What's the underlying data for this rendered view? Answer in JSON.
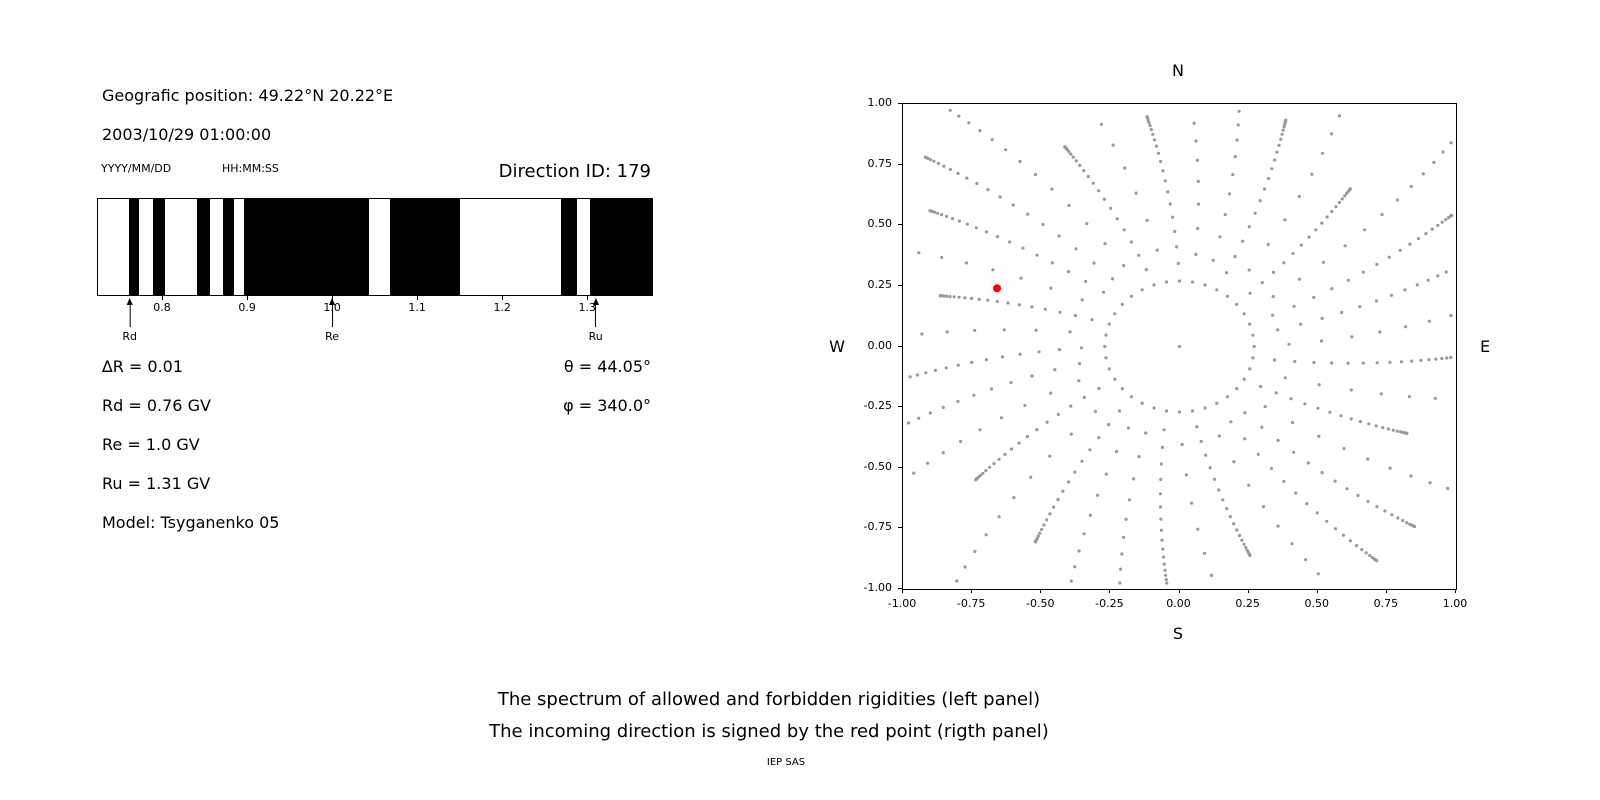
{
  "left_panel": {
    "geo_position": "Geografic position: 49.22°N 20.22°E",
    "datetime": "2003/10/29 01:00:00",
    "date_format_label": "YYYY/MM/DD",
    "time_format_label": "HH:MM:SS",
    "direction_id": "Direction ID: 179",
    "stats_left": [
      "∆R = 0.01",
      "Rd = 0.76 GV",
      "Re = 1.0 GV",
      "Ru = 1.31 GV",
      "Model: Tsyganenko 05"
    ],
    "stats_right": [
      "θ = 44.05°",
      "φ = 340.0°"
    ]
  },
  "caption": {
    "line1": "The spectrum of allowed and forbidden rigidities (left panel)",
    "line2": "The incoming direction is signed by the red point (rigth panel)",
    "credit": "IEP SAS"
  },
  "chart_data": [
    {
      "id": "rigidity-spectrum",
      "type": "bands",
      "x_min": 0.7235,
      "x_max": 1.375,
      "x_ticks": [
        0.8,
        0.9,
        1.0,
        1.1,
        1.2,
        1.3
      ],
      "x_tick_labels": [
        "0.8",
        "0.9",
        "1.0",
        "1.1",
        "1.2",
        "1.3"
      ],
      "band_color": "#000000",
      "forbidden_bands": [
        [
          0.76,
          0.772
        ],
        [
          0.788,
          0.802
        ],
        [
          0.84,
          0.855
        ],
        [
          0.87,
          0.883
        ],
        [
          0.895,
          1.042
        ],
        [
          1.067,
          1.149
        ],
        [
          1.268,
          1.287
        ],
        [
          1.302,
          1.375
        ]
      ],
      "markers": [
        {
          "label": "Rd",
          "value": 0.762
        },
        {
          "label": "Re",
          "value": 1.0
        },
        {
          "label": "Ru",
          "value": 1.31
        }
      ]
    },
    {
      "id": "incoming-direction",
      "type": "scatter",
      "xlim": [
        -1.0,
        1.0
      ],
      "ylim": [
        -1.0,
        1.0
      ],
      "x_tick_labels": [
        "-1.00",
        "-0.75",
        "-0.50",
        "-0.25",
        "0.00",
        "0.25",
        "0.50",
        "0.75",
        "1.00"
      ],
      "y_tick_labels": [
        "1.00",
        "0.75",
        "0.50",
        "0.25",
        "0.00",
        "-0.25",
        "-0.50",
        "-0.75",
        "-1.00"
      ],
      "direction_labels": {
        "top": "N",
        "bottom": "S",
        "left": "W",
        "right": "E"
      },
      "dot_color": "#999999",
      "red_point": {
        "x": -0.66,
        "y": 0.24,
        "color": "#ff0000"
      },
      "center_point": {
        "x": 0.0,
        "y": 0.0
      },
      "spoke_pattern": {
        "n_spokes": 36,
        "r_inner": 0.27,
        "points_per_spoke": 22,
        "r_outer_base": 1.22,
        "r_outer_variation": 0.33,
        "curvature": 0.18,
        "density_power": 2.3
      }
    }
  ]
}
